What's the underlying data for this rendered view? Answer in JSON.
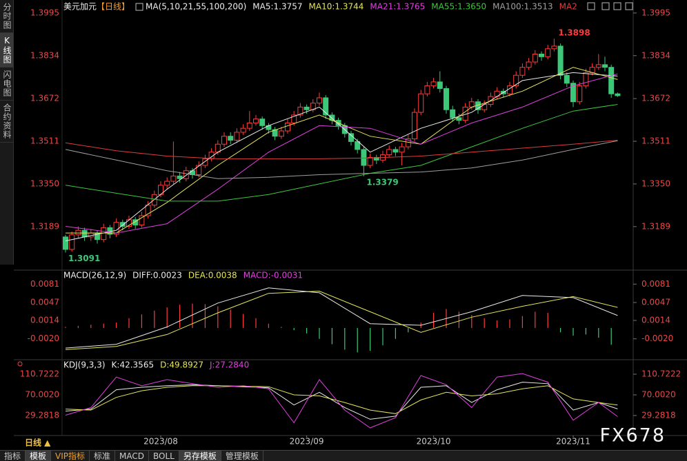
{
  "sidebar": [
    "分时图",
    "K线图",
    "闪电图",
    "合约资料"
  ],
  "tabs": [
    "指标",
    "模板",
    "VIP指标",
    "标准",
    "MACD",
    "BOLL",
    "另存模板",
    "管理模板"
  ],
  "period_button": "日线 ▲",
  "watermark": "FX678",
  "chart_data": [
    {
      "type": "candlestick",
      "title": "美元加元",
      "period": "【日线】",
      "indicator": "MA(5,10,21,55,100,200)",
      "axis_color": "#e84848",
      "up_color": "#ff3c3c",
      "down_color": "#3cc878",
      "ylim": [
        1.303,
        1.4044
      ],
      "yticks": [
        1.3995,
        1.3834,
        1.3672,
        1.3511,
        {
          "value": 1.335,
          "label": "1.3350"
        },
        1.3189
      ],
      "xticks": [
        {
          "value": 15,
          "label": "2023/08"
        },
        {
          "value": 38,
          "label": "2023/09"
        },
        {
          "value": 58,
          "label": "2023/10"
        },
        {
          "value": 80,
          "label": "2023/11"
        }
      ],
      "annotations": [
        "1.3898",
        "1.3379",
        "1.3091"
      ],
      "candles": [
        [
          1.315,
          1.3158,
          1.3091,
          1.3103
        ],
        [
          1.3103,
          1.317,
          1.3095,
          1.3158
        ],
        [
          1.3158,
          1.319,
          1.3145,
          1.3175
        ],
        [
          1.3175,
          1.3185,
          1.3135,
          1.315
        ],
        [
          1.315,
          1.318,
          1.3135,
          1.3165
        ],
        [
          1.3165,
          1.3175,
          1.3125,
          1.314
        ],
        [
          1.314,
          1.32,
          1.313,
          1.3185
        ],
        [
          1.3185,
          1.3195,
          1.3145,
          1.316
        ],
        [
          1.316,
          1.322,
          1.315,
          1.3205
        ],
        [
          1.3205,
          1.3215,
          1.3175,
          1.319
        ],
        [
          1.319,
          1.323,
          1.318,
          1.3215
        ],
        [
          1.3215,
          1.3225,
          1.318,
          1.3195
        ],
        [
          1.3195,
          1.3245,
          1.3185,
          1.323
        ],
        [
          1.323,
          1.3285,
          1.322,
          1.327
        ],
        [
          1.327,
          1.3325,
          1.326,
          1.331
        ],
        [
          1.331,
          1.336,
          1.33,
          1.3345
        ],
        [
          1.3345,
          1.3375,
          1.333,
          1.336
        ],
        [
          1.336,
          1.351,
          1.335,
          1.338
        ],
        [
          1.338,
          1.3395,
          1.3355,
          1.337
        ],
        [
          1.337,
          1.3415,
          1.336,
          1.34
        ],
        [
          1.34,
          1.341,
          1.337,
          1.3385
        ],
        [
          1.3385,
          1.3435,
          1.3375,
          1.342
        ],
        [
          1.342,
          1.346,
          1.341,
          1.3445
        ],
        [
          1.3445,
          1.3485,
          1.3435,
          1.347
        ],
        [
          1.347,
          1.3515,
          1.346,
          1.35
        ],
        [
          1.35,
          1.3545,
          1.349,
          1.353
        ],
        [
          1.353,
          1.3545,
          1.35,
          1.3515
        ],
        [
          1.3515,
          1.356,
          1.3505,
          1.3545
        ],
        [
          1.3545,
          1.3575,
          1.3535,
          1.356
        ],
        [
          1.356,
          1.3625,
          1.355,
          1.358
        ],
        [
          1.358,
          1.361,
          1.357,
          1.3595
        ],
        [
          1.3595,
          1.3605,
          1.3555,
          1.357
        ],
        [
          1.357,
          1.358,
          1.354,
          1.3555
        ],
        [
          1.3555,
          1.3565,
          1.3515,
          1.353
        ],
        [
          1.353,
          1.3565,
          1.352,
          1.355
        ],
        [
          1.355,
          1.3595,
          1.354,
          1.358
        ],
        [
          1.358,
          1.3625,
          1.357,
          1.361
        ],
        [
          1.361,
          1.3655,
          1.36,
          1.364
        ],
        [
          1.364,
          1.365,
          1.3615,
          1.363
        ],
        [
          1.363,
          1.367,
          1.362,
          1.3655
        ],
        [
          1.3655,
          1.3695,
          1.3645,
          1.3675
        ],
        [
          1.3675,
          1.3685,
          1.3595,
          1.361
        ],
        [
          1.361,
          1.362,
          1.3575,
          1.359
        ],
        [
          1.359,
          1.36,
          1.3555,
          1.357
        ],
        [
          1.357,
          1.358,
          1.3525,
          1.354
        ],
        [
          1.354,
          1.355,
          1.3495,
          1.351
        ],
        [
          1.351,
          1.352,
          1.3465,
          1.348
        ],
        [
          1.348,
          1.349,
          1.3379,
          1.342
        ],
        [
          1.342,
          1.3465,
          1.341,
          1.345
        ],
        [
          1.345,
          1.346,
          1.3425,
          1.344
        ],
        [
          1.344,
          1.3475,
          1.343,
          1.346
        ],
        [
          1.346,
          1.3495,
          1.345,
          1.348
        ],
        [
          1.348,
          1.349,
          1.3455,
          1.347
        ],
        [
          1.347,
          1.3505,
          1.342,
          1.349
        ],
        [
          1.349,
          1.3535,
          1.348,
          1.352
        ],
        [
          1.352,
          1.3635,
          1.351,
          1.362
        ],
        [
          1.362,
          1.3705,
          1.361,
          1.369
        ],
        [
          1.369,
          1.3735,
          1.368,
          1.372
        ],
        [
          1.372,
          1.375,
          1.371,
          1.3735
        ],
        [
          1.3735,
          1.3775,
          1.3695,
          1.371
        ],
        [
          1.371,
          1.372,
          1.3615,
          1.363
        ],
        [
          1.363,
          1.3645,
          1.3585,
          1.36
        ],
        [
          1.36,
          1.3615,
          1.3575,
          1.359
        ],
        [
          1.359,
          1.3655,
          1.358,
          1.364
        ],
        [
          1.364,
          1.3675,
          1.363,
          1.366
        ],
        [
          1.366,
          1.367,
          1.3615,
          1.363
        ],
        [
          1.363,
          1.3665,
          1.362,
          1.365
        ],
        [
          1.365,
          1.3695,
          1.364,
          1.368
        ],
        [
          1.368,
          1.3715,
          1.367,
          1.37
        ],
        [
          1.37,
          1.371,
          1.3675,
          1.369
        ],
        [
          1.369,
          1.3735,
          1.368,
          1.372
        ],
        [
          1.372,
          1.3775,
          1.371,
          1.376
        ],
        [
          1.376,
          1.3805,
          1.375,
          1.379
        ],
        [
          1.379,
          1.3825,
          1.378,
          1.381
        ],
        [
          1.381,
          1.3855,
          1.38,
          1.384
        ],
        [
          1.384,
          1.385,
          1.3815,
          1.383
        ],
        [
          1.383,
          1.3875,
          1.382,
          1.386
        ],
        [
          1.386,
          1.3898,
          1.385,
          1.387
        ],
        [
          1.387,
          1.388,
          1.3745,
          1.376
        ],
        [
          1.376,
          1.377,
          1.3715,
          1.373
        ],
        [
          1.373,
          1.374,
          1.364,
          1.366
        ],
        [
          1.366,
          1.3735,
          1.365,
          1.372
        ],
        [
          1.372,
          1.3785,
          1.371,
          1.377
        ],
        [
          1.377,
          1.3805,
          1.376,
          1.379
        ],
        [
          1.379,
          1.384,
          1.378,
          1.38
        ],
        [
          1.38,
          1.383,
          1.3775,
          1.379
        ],
        [
          1.379,
          1.38,
          1.3675,
          1.369
        ],
        [
          1.369,
          1.3695,
          1.3678,
          1.3683
        ]
      ],
      "x": [
        0,
        8,
        16,
        24,
        32,
        40,
        48,
        56,
        64,
        72,
        80,
        87
      ],
      "series": [
        {
          "name": "MA5:1.3757",
          "color": "#ececec",
          "values": [
            1.3135,
            1.3175,
            1.333,
            1.347,
            1.357,
            1.364,
            1.347,
            1.356,
            1.362,
            1.374,
            1.377,
            1.3757
          ]
        },
        {
          "name": "MA10:1.3744",
          "color": "#e6e65a",
          "values": [
            1.3165,
            1.3165,
            1.328,
            1.342,
            1.3545,
            1.361,
            1.353,
            1.35,
            1.364,
            1.37,
            1.379,
            1.3744
          ]
        },
        {
          "name": "MA21:1.3765",
          "color": "#e040e0",
          "values": [
            1.319,
            1.3165,
            1.32,
            1.333,
            1.347,
            1.357,
            1.356,
            1.35,
            1.358,
            1.364,
            1.372,
            1.3765
          ]
        },
        {
          "name": "MA55:1.3650",
          "color": "#3cc83c",
          "values": [
            1.3345,
            1.3315,
            1.3285,
            1.3285,
            1.331,
            1.335,
            1.339,
            1.342,
            1.349,
            1.356,
            1.3625,
            1.365
          ]
        },
        {
          "name": "MA100:1.3513",
          "color": "#a0a0a0",
          "values": [
            1.348,
            1.344,
            1.34,
            1.337,
            1.3375,
            1.3385,
            1.339,
            1.3395,
            1.341,
            1.344,
            1.348,
            1.3513
          ]
        },
        {
          "name": "MA2",
          "color": "#e03c3c",
          "values": [
            1.3505,
            1.3475,
            1.3455,
            1.3445,
            1.3445,
            1.3445,
            1.3448,
            1.3455,
            1.347,
            1.3485,
            1.35,
            1.3515
          ]
        }
      ]
    },
    {
      "type": "macd",
      "indicator": "MACD(26,12,9)",
      "axis_color": "#e84848",
      "up_color": "#ff3c3c",
      "down_color": "#3cc878",
      "ylim": [
        -0.0056,
        0.0103
      ],
      "yticks": [
        0.0081,
        0.0047,
        0.0014,
        {
          "value": -0.002,
          "label": "-0.0020"
        }
      ],
      "x": [
        0,
        8,
        16,
        24,
        32,
        40,
        48,
        56,
        64,
        72,
        80,
        87
      ],
      "series": [
        {
          "name": "DIFF:0.0023",
          "color": "#ececec",
          "values": [
            -0.0037,
            -0.003,
            0.0002,
            0.0046,
            0.0074,
            0.0065,
            0.0008,
            0.0005,
            0.003,
            0.006,
            0.0056,
            0.0023
          ]
        },
        {
          "name": "DEA:0.0038",
          "color": "#e6e65a",
          "values": [
            -0.004,
            -0.0034,
            -0.0012,
            0.0028,
            0.0064,
            0.0068,
            0.003,
            -0.0008,
            0.002,
            0.004,
            0.0058,
            0.0038
          ]
        }
      ],
      "histogram": {
        "name": "MACD:-0.0031",
        "color": "#e040e0",
        "x": [
          0,
          2,
          4,
          6,
          8,
          10,
          12,
          14,
          16,
          18,
          20,
          22,
          24,
          26,
          28,
          30,
          32,
          34,
          36,
          38,
          40,
          42,
          44,
          46,
          48,
          50,
          52,
          54,
          56,
          58,
          60,
          62,
          64,
          66,
          68,
          70,
          72,
          74,
          76,
          78,
          80,
          82,
          84,
          86
        ],
        "values": [
          0.0002,
          0.0004,
          0.0006,
          0.0008,
          0.001,
          0.0018,
          0.0025,
          0.0032,
          0.0038,
          0.0043,
          0.0045,
          0.0044,
          0.004,
          0.0034,
          0.0026,
          0.0018,
          0.0008,
          0.0002,
          -0.0004,
          -0.001,
          -0.002,
          -0.003,
          -0.004,
          -0.0045,
          -0.0042,
          -0.0032,
          -0.002,
          -0.0008,
          0.001,
          0.0028,
          0.0035,
          0.003,
          0.0024,
          0.0018,
          0.0014,
          0.0016,
          0.0022,
          0.003,
          0.0028,
          -0.0008,
          -0.0014,
          -0.0012,
          -0.0018,
          -0.0031
        ]
      }
    },
    {
      "type": "line",
      "indicator": "KDJ(9,3,3)",
      "axis_color": "#e84848",
      "ylim": [
        -7.4,
        135.2
      ],
      "yticks": [
        110.7222,
        {
          "value": 70.002,
          "label": "70.0020"
        },
        29.2818
      ],
      "x": [
        0,
        4,
        8,
        12,
        16,
        20,
        24,
        28,
        32,
        36,
        40,
        44,
        48,
        52,
        56,
        60,
        64,
        68,
        72,
        76,
        80,
        84,
        87
      ],
      "series": [
        {
          "name": "K:42.3565",
          "color": "#ececec",
          "values": [
            38,
            42,
            80,
            85,
            88,
            90,
            88,
            86,
            84,
            50,
            75,
            45,
            22,
            28,
            85,
            88,
            55,
            80,
            95,
            92,
            40,
            55,
            42.3565
          ]
        },
        {
          "name": "D:49.8927",
          "color": "#e6e65a",
          "values": [
            42,
            40,
            65,
            78,
            85,
            88,
            88,
            87,
            86,
            70,
            68,
            55,
            40,
            33,
            60,
            75,
            68,
            72,
            82,
            88,
            62,
            55,
            49.8927
          ]
        },
        {
          "name": "J:27.2840",
          "color": "#e040e0",
          "values": [
            30,
            45,
            105,
            88,
            100,
            92,
            85,
            88,
            82,
            15,
            100,
            40,
            5,
            25,
            108,
            90,
            45,
            105,
            112,
            95,
            20,
            55,
            27.284
          ]
        }
      ]
    }
  ]
}
